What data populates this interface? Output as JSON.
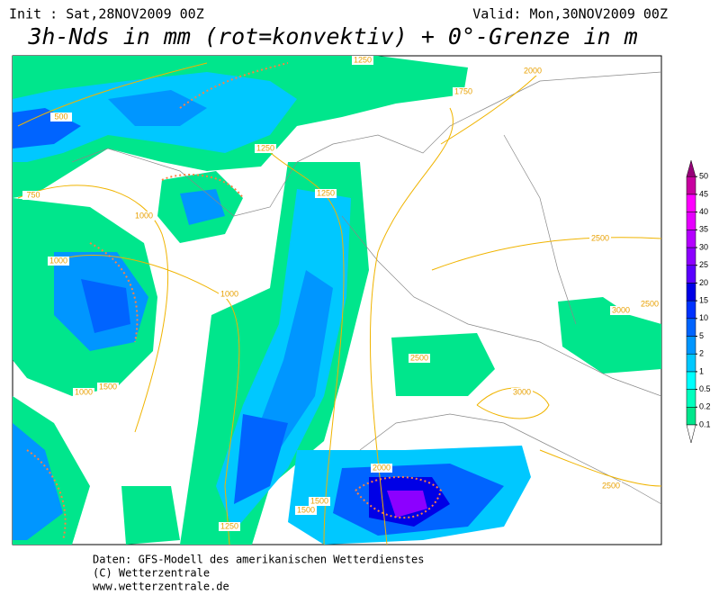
{
  "header": {
    "init": "Init : Sat,28NOV2009 00Z",
    "valid": "Valid: Mon,30NOV2009 00Z",
    "title": "3h-Nds in mm (rot=konvektiv) + 0°-Grenze in m"
  },
  "legend": {
    "levels": [
      0.1,
      0.2,
      0.5,
      1,
      2,
      5,
      10,
      15,
      20,
      25,
      30,
      35,
      40,
      45,
      50
    ],
    "colors": [
      "#00e68c",
      "#00ffbe",
      "#00ffff",
      "#00c8ff",
      "#0096ff",
      "#0064ff",
      "#0032ff",
      "#0000e6",
      "#5a00ff",
      "#8c00ff",
      "#b400ff",
      "#e600ff",
      "#ff00ff",
      "#c800a0",
      "#960078"
    ]
  },
  "map": {
    "contour_labels": [
      "500",
      "750",
      "1000",
      "1000",
      "1000",
      "1250",
      "1250",
      "1250",
      "1500",
      "1500",
      "1500",
      "1750",
      "2000",
      "2000",
      "2500",
      "2500",
      "2500",
      "2500",
      "3000",
      "3000",
      "1000",
      "1250"
    ]
  },
  "footer": {
    "lines": [
      "Daten: GFS-Modell des amerikanischen Wetterdienstes",
      "(C) Wetterzentrale",
      "www.wetterzentrale.de"
    ]
  }
}
